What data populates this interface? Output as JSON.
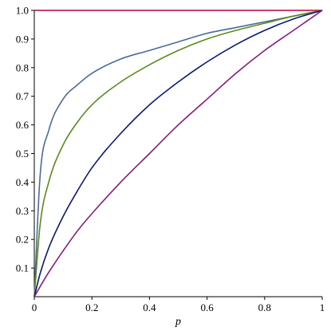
{
  "chart_data": {
    "type": "line",
    "title": "",
    "xlabel": "p",
    "ylabel": "",
    "xlim": [
      0,
      1
    ],
    "ylim": [
      0,
      1
    ],
    "grid": false,
    "legend": "none",
    "x_ticks": [
      "0",
      "0.2",
      "0.4",
      "0.6",
      "0.8",
      "1"
    ],
    "y_ticks": [
      "0.1",
      "0.2",
      "0.3",
      "0.4",
      "0.5",
      "0.6",
      "0.7",
      "0.8",
      "0.9",
      "1.0"
    ],
    "x": [
      0,
      0.02,
      0.05,
      0.1,
      0.15,
      0.2,
      0.3,
      0.4,
      0.5,
      0.6,
      0.7,
      0.8,
      0.9,
      1.0
    ],
    "series": [
      {
        "color": "#c0003c",
        "values": [
          1,
          1,
          1,
          1,
          1,
          1,
          1,
          1,
          1,
          1,
          1,
          1,
          1,
          1
        ]
      },
      {
        "color": "#4a6c9a",
        "values": [
          0,
          0.42,
          0.58,
          0.69,
          0.74,
          0.78,
          0.83,
          0.86,
          0.89,
          0.92,
          0.94,
          0.96,
          0.98,
          1
        ]
      },
      {
        "color": "#5b8c1a",
        "values": [
          0,
          0.25,
          0.4,
          0.53,
          0.61,
          0.67,
          0.75,
          0.81,
          0.86,
          0.9,
          0.93,
          0.955,
          0.98,
          1
        ]
      },
      {
        "color": "#0a1a78",
        "values": [
          0,
          0.08,
          0.17,
          0.28,
          0.37,
          0.45,
          0.57,
          0.67,
          0.75,
          0.82,
          0.88,
          0.93,
          0.97,
          1
        ]
      },
      {
        "color": "#8b1a80",
        "values": [
          0,
          0.035,
          0.085,
          0.16,
          0.23,
          0.29,
          0.4,
          0.5,
          0.6,
          0.69,
          0.78,
          0.86,
          0.93,
          1
        ]
      }
    ]
  }
}
